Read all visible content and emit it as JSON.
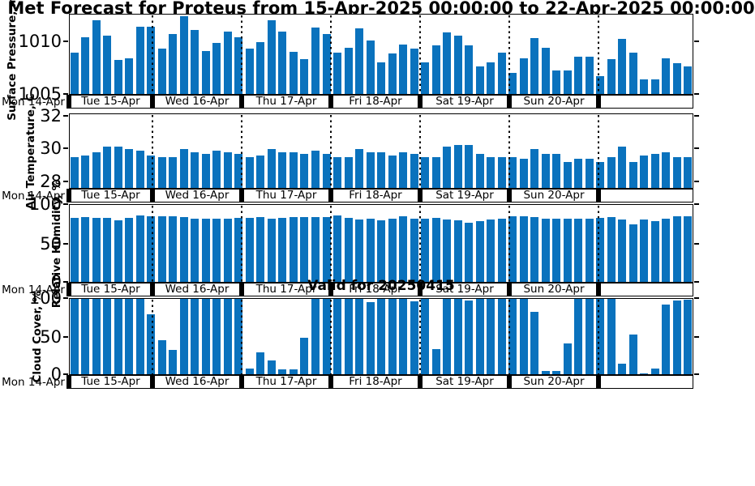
{
  "chart_data": {
    "type": "bar",
    "title": "Met Forecast for Proteus from 15-Apr-2025 00:00:00 to 22-Apr-2025 00:00:00",
    "valid_for": "Valid for 20250415",
    "left_day_label": "Mon 14-Apr",
    "day_labels": [
      "Tue 15-Apr",
      "Wed 16-Apr",
      "Thu 17-Apr",
      "Fri 18-Apr",
      "Sat 19-Apr",
      "Sun 20-Apr"
    ],
    "bars_per_day": 8,
    "bar_color": "#0a72bd",
    "grid": "vertical dotted lines at day boundaries",
    "legend": "none",
    "subplots": [
      {
        "name": "surface-pressure",
        "ylabel": "Surface Pressure, mb",
        "yticks": [
          1010,
          1005
        ],
        "ylim": [
          1004.9,
          1012.6
        ],
        "values": [
          1008.9,
          1010.4,
          1012.0,
          1010.5,
          1008.2,
          1008.4,
          1011.4,
          1011.4,
          1009.3,
          1010.7,
          1012.4,
          1011.1,
          1009.1,
          1009.8,
          1010.9,
          1010.4,
          1009.3,
          1009.9,
          1012.0,
          1010.9,
          1009.0,
          1008.3,
          1011.3,
          1010.7,
          1008.9,
          1009.4,
          1011.2,
          1010.1,
          1008.0,
          1008.8,
          1009.7,
          1009.3,
          1008.0,
          1009.6,
          1010.8,
          1010.5,
          1009.6,
          1007.6,
          1008.0,
          1008.9,
          1007.0,
          1008.4,
          1010.3,
          1009.4,
          1007.2,
          1007.2,
          1008.5,
          1008.5,
          1006.7,
          1008.3,
          1010.2,
          1008.9,
          1006.4,
          1006.4,
          1008.4,
          1007.9,
          1007.6
        ]
      },
      {
        "name": "air-temperature",
        "ylabel": "Air Temperature, C",
        "yticks": [
          32,
          30,
          28
        ],
        "ylim": [
          27.55,
          32.15
        ],
        "values": [
          29.5,
          29.6,
          29.8,
          30.1,
          30.1,
          30.0,
          29.9,
          29.6,
          29.5,
          29.5,
          30.0,
          29.8,
          29.7,
          29.9,
          29.8,
          29.7,
          29.5,
          29.6,
          30.0,
          29.8,
          29.8,
          29.7,
          29.9,
          29.7,
          29.5,
          29.5,
          30.0,
          29.8,
          29.8,
          29.6,
          29.8,
          29.7,
          29.5,
          29.5,
          30.1,
          30.2,
          30.2,
          29.7,
          29.5,
          29.5,
          29.5,
          29.4,
          30.0,
          29.7,
          29.7,
          29.2,
          29.4,
          29.4,
          29.2,
          29.5,
          30.1,
          29.2,
          29.6,
          29.7,
          29.8,
          29.5,
          29.5
        ]
      },
      {
        "name": "relative-humidity",
        "ylabel": "Relative Humidity, %",
        "yticks": [
          100,
          50,
          0
        ],
        "ylim": [
          0,
          100
        ],
        "values": [
          83,
          84,
          83,
          83,
          79,
          83,
          86,
          85,
          85,
          85,
          84,
          82,
          82,
          82,
          82,
          83,
          83,
          84,
          82,
          83,
          84,
          84,
          84,
          84,
          86,
          83,
          80,
          81,
          79,
          82,
          85,
          82,
          82,
          83,
          80,
          79,
          76,
          78,
          80,
          82,
          85,
          85,
          84,
          82,
          82,
          81,
          82,
          82,
          83,
          84,
          80,
          74,
          80,
          78,
          81,
          85,
          85
        ]
      },
      {
        "name": "cloud-cover",
        "ylabel": "Cloud Cover, %",
        "yticks": [
          100,
          50,
          0
        ],
        "ylim": [
          0,
          100
        ],
        "values": [
          100,
          100,
          100,
          100,
          100,
          100,
          100,
          79,
          45,
          33,
          100,
          100,
          100,
          100,
          100,
          100,
          8,
          29,
          19,
          7,
          7,
          48,
          100,
          100,
          100,
          100,
          100,
          95,
          100,
          100,
          100,
          96,
          100,
          34,
          100,
          100,
          97,
          100,
          100,
          100,
          100,
          100,
          82,
          5,
          5,
          41,
          100,
          100,
          100,
          100,
          15,
          53,
          2,
          8,
          92,
          97,
          98
        ]
      }
    ]
  }
}
